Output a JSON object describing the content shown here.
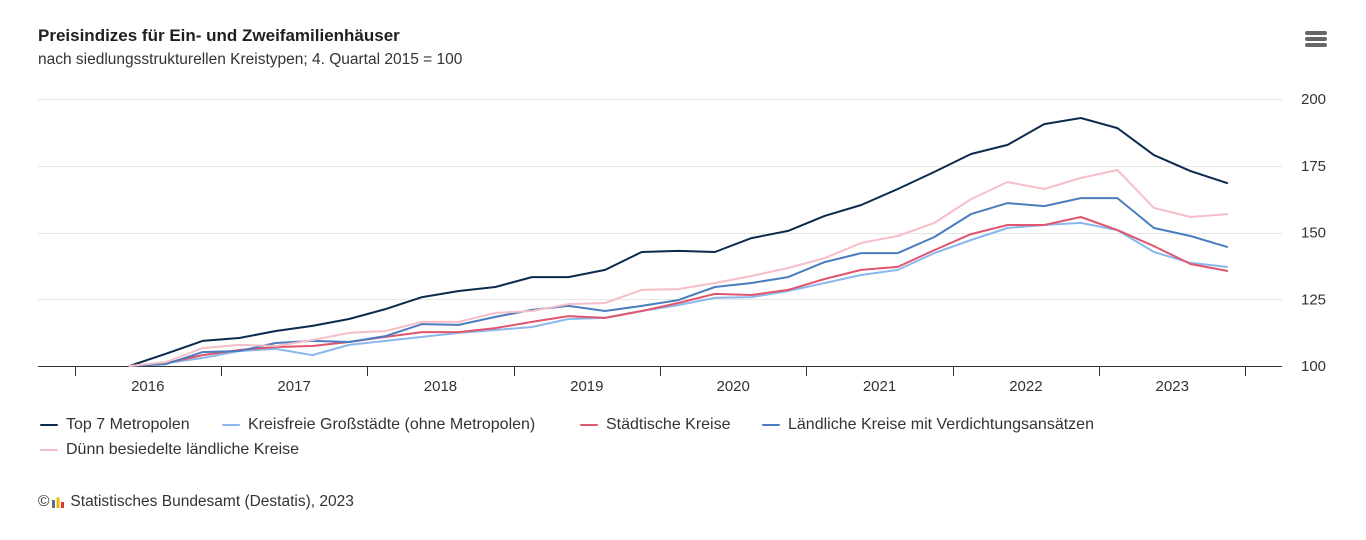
{
  "header": {
    "menu_icon": "hamburger-menu-icon"
  },
  "chart_data": {
    "type": "line",
    "title": "Preisindizes für Ein- und Zweifamilienhäuser",
    "subtitle": "nach siedlungsstrukturellen Kreistypen; 4. Quartal 2015 = 100",
    "xlabel": "",
    "ylabel": "",
    "x": [
      "2015-Q4",
      "2016-Q1",
      "2016-Q2",
      "2016-Q3",
      "2016-Q4",
      "2017-Q1",
      "2017-Q2",
      "2017-Q3",
      "2017-Q4",
      "2018-Q1",
      "2018-Q2",
      "2018-Q3",
      "2018-Q4",
      "2019-Q1",
      "2019-Q2",
      "2019-Q3",
      "2019-Q4",
      "2020-Q1",
      "2020-Q2",
      "2020-Q3",
      "2020-Q4",
      "2021-Q1",
      "2021-Q2",
      "2021-Q3",
      "2021-Q4",
      "2022-Q1",
      "2022-Q2",
      "2022-Q3",
      "2022-Q4",
      "2023-Q1",
      "2023-Q2"
    ],
    "xticks": [
      "2016",
      "2017",
      "2018",
      "2019",
      "2020",
      "2021",
      "2022",
      "2023"
    ],
    "xlim": [
      2015.25,
      2023.75
    ],
    "yticks": [
      100,
      125,
      150,
      175,
      200
    ],
    "ylim": [
      100,
      200
    ],
    "y_axis_side": "right",
    "grid": true,
    "legend_position": "bottom-left",
    "series": [
      {
        "name": "Top 7 Metropolen",
        "color": "#0c2a4d",
        "values": [
          100,
          104.6,
          109.4,
          110.5,
          113.1,
          115.0,
          117.6,
          121.3,
          125.8,
          128.1,
          129.6,
          133.3,
          133.3,
          136.0,
          142.7,
          143.1,
          142.7,
          147.9,
          150.6,
          156.2,
          160.3,
          166.3,
          172.7,
          179.4,
          182.8,
          190.6,
          192.9,
          189.1,
          179.0,
          173.0,
          168.5
        ]
      },
      {
        "name": "Kreisfreie Großstädte (ohne Metropolen)",
        "color": "#8ab8ec",
        "values": [
          100,
          101.1,
          103.0,
          105.6,
          106.4,
          104.1,
          107.9,
          109.4,
          110.9,
          112.4,
          113.5,
          114.6,
          117.6,
          118.0,
          120.6,
          122.8,
          125.5,
          125.8,
          128.1,
          131.1,
          134.1,
          136.0,
          142.3,
          147.2,
          151.7,
          152.8,
          153.6,
          150.9,
          142.7,
          138.6,
          137.1
        ]
      },
      {
        "name": "Städtische Kreise",
        "color": "#e0566c",
        "values": [
          100,
          101.1,
          104.1,
          106.0,
          107.1,
          107.5,
          109.0,
          110.9,
          112.7,
          112.7,
          114.2,
          116.5,
          118.7,
          118.0,
          120.6,
          123.6,
          127.0,
          126.6,
          128.5,
          132.6,
          136.0,
          137.1,
          143.4,
          149.4,
          152.8,
          152.8,
          155.8,
          150.9,
          144.9,
          138.2,
          135.6
        ]
      },
      {
        "name": "Ländliche Kreise mit Verdichtungsansätzen",
        "color": "#4a7dbf",
        "values": [
          100,
          100.7,
          105.2,
          105.6,
          108.6,
          109.4,
          109.0,
          111.2,
          115.7,
          115.4,
          118.4,
          121.0,
          122.5,
          120.6,
          122.5,
          124.7,
          129.6,
          131.1,
          133.3,
          138.9,
          142.3,
          142.3,
          148.3,
          156.9,
          161.0,
          159.9,
          162.9,
          162.9,
          151.7,
          148.7,
          144.6
        ]
      },
      {
        "name": "Dünn besiedelte ländliche Kreise",
        "color": "#f6bfc8",
        "values": [
          100,
          101.5,
          106.7,
          107.9,
          107.5,
          109.7,
          112.4,
          113.1,
          116.5,
          116.5,
          119.9,
          120.6,
          123.2,
          123.6,
          128.5,
          128.8,
          131.1,
          133.7,
          136.7,
          140.4,
          146.1,
          148.7,
          153.6,
          162.5,
          168.9,
          166.3,
          170.4,
          173.4,
          159.2,
          155.8,
          156.9
        ]
      }
    ]
  },
  "footer": {
    "copyright_symbol": "©",
    "logo_icon": "destatis-logo-icon",
    "source": "Statistisches Bundesamt (Destatis), 2023"
  }
}
